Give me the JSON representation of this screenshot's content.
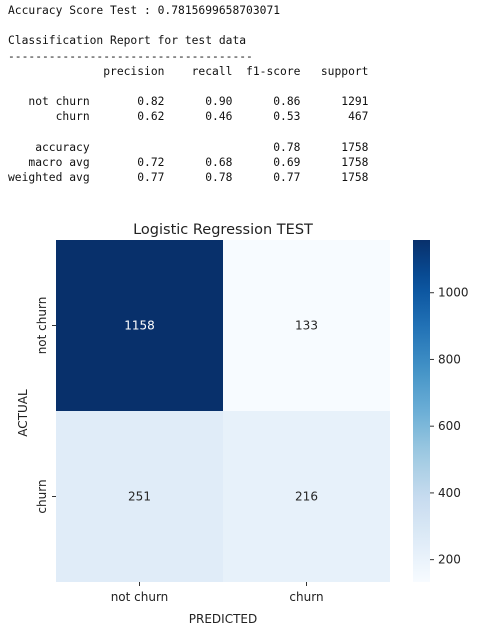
{
  "report": {
    "lines": [
      "Accuracy Score Test : 0.7815699658703071",
      "",
      "Classification Report for test data",
      "------------------------------------",
      "              precision    recall  f1-score   support",
      "",
      "   not churn       0.82      0.90      0.86      1291",
      "       churn       0.62      0.46      0.53       467",
      "",
      "    accuracy                           0.78      1758",
      "   macro avg       0.72      0.68      0.69      1758",
      "weighted avg       0.77      0.78      0.77      1758"
    ]
  },
  "chart_data": {
    "type": "heatmap",
    "title": "Logistic Regression TEST",
    "xlabel": "PREDICTED",
    "ylabel": "ACTUAL",
    "x_categories": [
      "not churn",
      "churn"
    ],
    "y_categories": [
      "not churn",
      "churn"
    ],
    "values": [
      [
        1158,
        133
      ],
      [
        251,
        216
      ]
    ],
    "value_labels": [
      [
        "1158",
        "133"
      ],
      [
        "251",
        "216"
      ]
    ],
    "colormap": "Blues",
    "vmin": 133,
    "vmax": 1158,
    "colorbar_ticks": [
      200,
      400,
      600,
      800,
      1000
    ],
    "colorbar_tick_labels": [
      "200",
      "400",
      "600",
      "800",
      "1000"
    ],
    "colors": {
      "low": "#f7fbff",
      "high": "#08306b"
    }
  }
}
